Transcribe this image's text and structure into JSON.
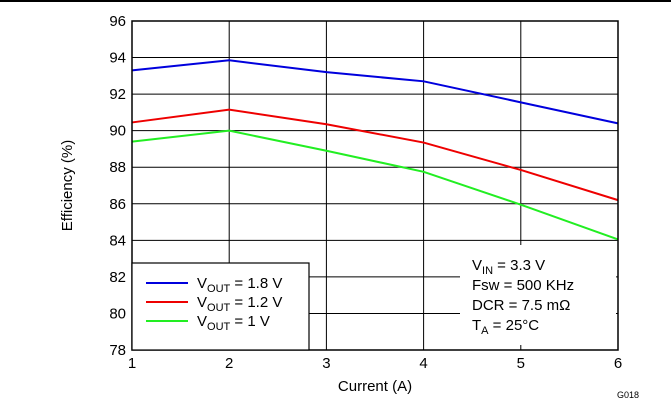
{
  "chart_data": {
    "type": "line",
    "title": "",
    "xlabel": "Current (A)",
    "ylabel": "Efficiency (%)",
    "xlim": [
      1,
      6
    ],
    "ylim": [
      78,
      96
    ],
    "xticks": [
      1,
      2,
      3,
      4,
      5,
      6
    ],
    "yticks": [
      78,
      80,
      82,
      84,
      86,
      88,
      90,
      92,
      94,
      96
    ],
    "grid": true,
    "legend_position": "bottom-left",
    "x": [
      1,
      2,
      3,
      4,
      5,
      6
    ],
    "series": [
      {
        "name_main": "V",
        "name_sub": "OUT",
        "name_rest": " = 1.8 V",
        "color": "#0000dd",
        "values": [
          93.3,
          93.85,
          93.2,
          92.7,
          91.55,
          90.4
        ]
      },
      {
        "name_main": "V",
        "name_sub": "OUT",
        "name_rest": " = 1.2 V",
        "color": "#ee0000",
        "values": [
          90.45,
          91.15,
          90.35,
          89.35,
          87.85,
          86.2
        ]
      },
      {
        "name_main": "V",
        "name_sub": "OUT",
        "name_rest": " = 1 V",
        "color": "#22ee22",
        "values": [
          89.4,
          90.0,
          88.9,
          87.75,
          85.95,
          84.05
        ]
      }
    ],
    "annotations": [
      {
        "main": "V",
        "sub": "IN",
        "rest": " = 3.3 V"
      },
      {
        "main": "Fsw = 500 KHz",
        "sub": "",
        "rest": ""
      },
      {
        "main": "DCR = 7.5 mΩ",
        "sub": "",
        "rest": ""
      },
      {
        "main": "T",
        "sub": "A",
        "rest": " = 25°C"
      }
    ],
    "figure_id": "G018"
  }
}
